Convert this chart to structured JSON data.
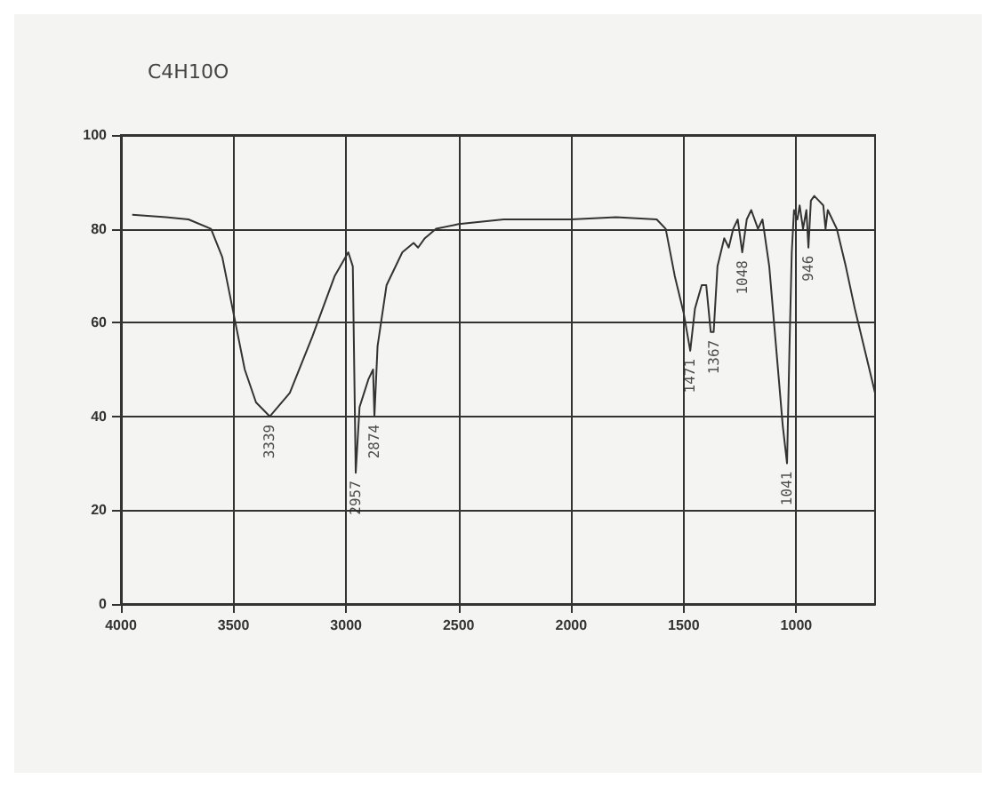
{
  "chart_data": {
    "type": "line",
    "title": "C4H10O",
    "x": [
      3950,
      3800,
      3700,
      3600,
      3550,
      3500,
      3450,
      3400,
      3339,
      3250,
      3150,
      3050,
      2990,
      2970,
      2957,
      2940,
      2920,
      2900,
      2880,
      2874,
      2860,
      2820,
      2750,
      2700,
      2680,
      2650,
      2600,
      2500,
      2300,
      2000,
      1800,
      1620,
      1580,
      1540,
      1500,
      1471,
      1450,
      1420,
      1400,
      1380,
      1367,
      1350,
      1320,
      1300,
      1280,
      1260,
      1240,
      1220,
      1200,
      1170,
      1150,
      1120,
      1090,
      1060,
      1041,
      1030,
      1020,
      1010,
      995,
      985,
      970,
      955,
      946,
      935,
      920,
      900,
      880,
      870,
      860,
      820,
      780,
      740,
      700,
      660,
      650
    ],
    "series": [
      {
        "color": "#333333",
        "values": [
          83,
          82.5,
          82,
          80,
          74,
          62,
          50,
          43,
          40,
          45,
          57,
          70,
          75,
          72,
          28,
          42,
          45,
          48,
          50,
          40,
          55,
          68,
          75,
          77,
          76,
          78,
          80,
          81,
          82,
          82,
          82.5,
          82,
          80,
          70,
          62,
          54,
          63,
          68,
          68,
          58,
          58,
          72,
          78,
          76,
          80,
          82,
          75,
          82,
          84,
          80,
          82,
          72,
          55,
          38,
          30,
          55,
          75,
          84,
          82,
          85,
          80,
          84,
          76,
          86,
          87,
          86,
          85,
          80,
          84,
          80,
          72,
          63,
          55,
          47,
          45
        ]
      }
    ],
    "xlim": [
      4000,
      650
    ],
    "xticks": [
      4000,
      3500,
      3000,
      2500,
      2000,
      1500,
      1000
    ],
    "ylim": [
      0,
      100
    ],
    "yticks": [
      0,
      20,
      40,
      60,
      80,
      100
    ],
    "grid": true,
    "marker": "none",
    "line_style": "solid",
    "annotations": [
      {
        "text": "3339",
        "x": 3339,
        "y": 40
      },
      {
        "text": "2957",
        "x": 2957,
        "y": 28
      },
      {
        "text": "2874",
        "x": 2874,
        "y": 40
      },
      {
        "text": "1471",
        "x": 1471,
        "y": 54
      },
      {
        "text": "1367",
        "x": 1367,
        "y": 58
      },
      {
        "text": "1048",
        "x": 1240,
        "y": 75
      },
      {
        "text": "1041",
        "x": 1041,
        "y": 30
      },
      {
        "text": "946",
        "x": 946,
        "y": 76
      }
    ]
  }
}
